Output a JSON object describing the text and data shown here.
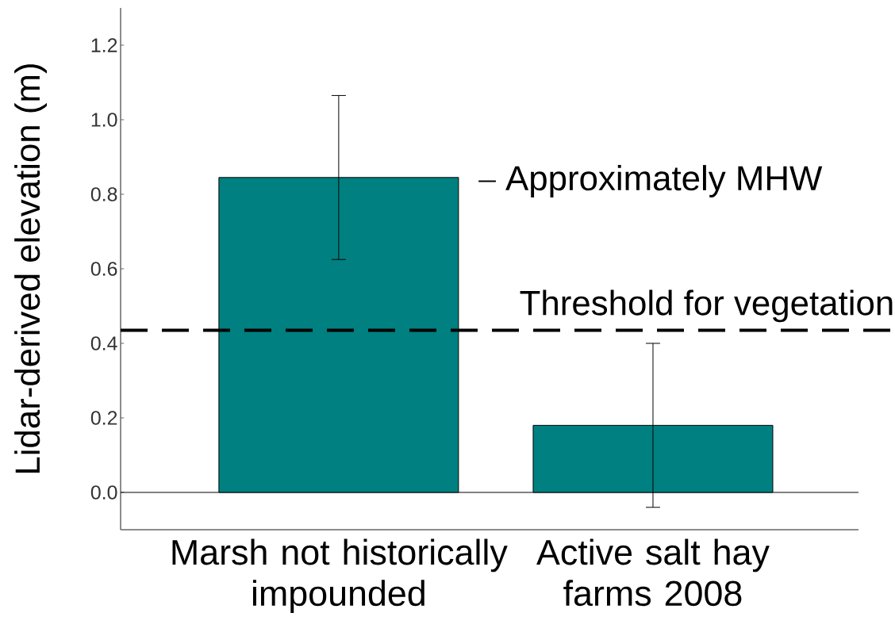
{
  "chart_data": {
    "type": "bar",
    "ylabel": "Lidar-derived elevation (m)",
    "categories": [
      "Marsh not historically impounded",
      "Active salt hay farms 2008"
    ],
    "values": [
      0.845,
      0.18
    ],
    "errors": [
      0.22,
      0.22
    ],
    "color": "#008080",
    "ylim": [
      -0.1,
      1.3
    ],
    "yticks": [
      {
        "value": 0,
        "label": "0.0"
      },
      0.2,
      0.4,
      0.6,
      0.8,
      {
        "value": 1,
        "label": "1.0"
      },
      1.2
    ],
    "ref_lines": [
      {
        "axis": "y",
        "value": 0.435,
        "label": "Threshold for vegetation",
        "color": "#000000",
        "line_style": "dashed"
      }
    ],
    "annotations": [
      "Approximately MHW"
    ]
  }
}
